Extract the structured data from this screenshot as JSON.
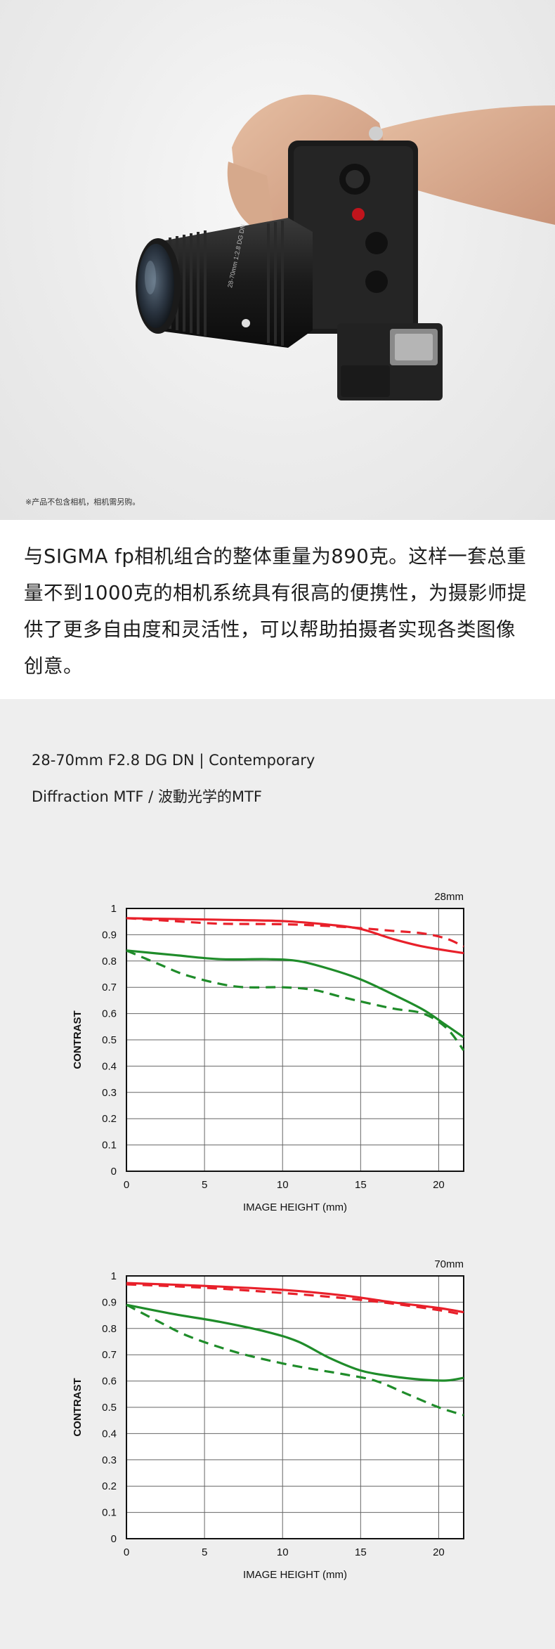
{
  "hero": {
    "disclaimer": "※产品不包含相机，相机需另购。",
    "lens_ring_text": "28-70mm 1:2.8 DG DN"
  },
  "intro": {
    "text": "与SIGMA fp相机组合的整体重量为890克。这样一套总重量不到1000克的相机系统具有很高的便携性，为摄影师提供了更多自由度和灵活性，可以帮助拍摄者实现各类图像创意。"
  },
  "mtf": {
    "lens_title": "28-70mm F2.8 DG DN | Contemporary",
    "subtitle": "Diffraction MTF / 波動光学的MTF"
  },
  "colors": {
    "red": "#e8202a",
    "green": "#1f8c2a",
    "grid": "#666666"
  },
  "chart_data": [
    {
      "type": "line",
      "title": "28mm",
      "xlabel": "IMAGE HEIGHT (mm)",
      "ylabel": "CONTRAST",
      "xlim": [
        0,
        21.6
      ],
      "ylim": [
        0,
        1
      ],
      "x_ticks": [
        0,
        5,
        10,
        15,
        20
      ],
      "y_ticks": [
        0,
        0.1,
        0.2,
        0.3,
        0.4,
        0.5,
        0.6,
        0.7,
        0.8,
        0.9,
        1
      ],
      "y_tick_labels": [
        "0",
        "0.1",
        "0.2",
        "0.3",
        "0.4",
        "0.5",
        "0.6",
        "0.7",
        "0.8",
        "0.9",
        "1"
      ],
      "grid": true,
      "series": [
        {
          "color": "red",
          "style": "solid",
          "points": [
            [
              0,
              0.963
            ],
            [
              3,
              0.96
            ],
            [
              6,
              0.957
            ],
            [
              10,
              0.952
            ],
            [
              13,
              0.938
            ],
            [
              15,
              0.922
            ],
            [
              17,
              0.885
            ],
            [
              19,
              0.855
            ],
            [
              21.6,
              0.83
            ]
          ]
        },
        {
          "color": "red",
          "style": "dashed",
          "points": [
            [
              0,
              0.963
            ],
            [
              3,
              0.952
            ],
            [
              6,
              0.942
            ],
            [
              10,
              0.94
            ],
            [
              13,
              0.933
            ],
            [
              15,
              0.925
            ],
            [
              17,
              0.915
            ],
            [
              19,
              0.905
            ],
            [
              20.5,
              0.885
            ],
            [
              21.6,
              0.855
            ]
          ]
        },
        {
          "color": "green",
          "style": "solid",
          "points": [
            [
              0,
              0.84
            ],
            [
              3,
              0.823
            ],
            [
              6,
              0.807
            ],
            [
              9,
              0.807
            ],
            [
              11,
              0.8
            ],
            [
              13,
              0.77
            ],
            [
              15,
              0.73
            ],
            [
              17,
              0.675
            ],
            [
              19,
              0.615
            ],
            [
              20.5,
              0.555
            ],
            [
              21.6,
              0.51
            ]
          ]
        },
        {
          "color": "green",
          "style": "dashed",
          "points": [
            [
              0,
              0.84
            ],
            [
              2,
              0.79
            ],
            [
              4,
              0.743
            ],
            [
              7,
              0.703
            ],
            [
              10,
              0.7
            ],
            [
              12,
              0.69
            ],
            [
              14,
              0.66
            ],
            [
              17,
              0.62
            ],
            [
              19,
              0.6
            ],
            [
              20.5,
              0.545
            ],
            [
              21.6,
              0.46
            ]
          ]
        }
      ]
    },
    {
      "type": "line",
      "title": "70mm",
      "xlabel": "IMAGE HEIGHT (mm)",
      "ylabel": "CONTRAST",
      "xlim": [
        0,
        21.6
      ],
      "ylim": [
        0,
        1
      ],
      "x_ticks": [
        0,
        5,
        10,
        15,
        20
      ],
      "y_ticks": [
        0,
        0.1,
        0.2,
        0.3,
        0.4,
        0.5,
        0.6,
        0.7,
        0.8,
        0.9,
        1
      ],
      "y_tick_labels": [
        "0",
        "0.1",
        "0.2",
        "0.3",
        "0.4",
        "0.5",
        "0.6",
        "0.7",
        "0.8",
        "0.9",
        "1"
      ],
      "grid": true,
      "series": [
        {
          "color": "red",
          "style": "solid",
          "points": [
            [
              0,
              0.973
            ],
            [
              5,
              0.962
            ],
            [
              10,
              0.947
            ],
            [
              14,
              0.925
            ],
            [
              17,
              0.9
            ],
            [
              20,
              0.878
            ],
            [
              21.6,
              0.862
            ]
          ]
        },
        {
          "color": "red",
          "style": "dashed",
          "points": [
            [
              0,
              0.968
            ],
            [
              5,
              0.955
            ],
            [
              10,
              0.935
            ],
            [
              14,
              0.915
            ],
            [
              17,
              0.895
            ],
            [
              20,
              0.87
            ],
            [
              21.6,
              0.852
            ]
          ]
        },
        {
          "color": "green",
          "style": "solid",
          "points": [
            [
              0,
              0.89
            ],
            [
              3,
              0.855
            ],
            [
              6,
              0.825
            ],
            [
              9,
              0.787
            ],
            [
              11,
              0.75
            ],
            [
              13,
              0.688
            ],
            [
              15,
              0.64
            ],
            [
              17,
              0.618
            ],
            [
              19,
              0.605
            ],
            [
              20.5,
              0.602
            ],
            [
              21.6,
              0.612
            ]
          ]
        },
        {
          "color": "green",
          "style": "dashed",
          "points": [
            [
              0,
              0.89
            ],
            [
              2,
              0.828
            ],
            [
              4,
              0.77
            ],
            [
              7,
              0.71
            ],
            [
              10,
              0.667
            ],
            [
              12,
              0.645
            ],
            [
              14,
              0.625
            ],
            [
              16,
              0.6
            ],
            [
              18,
              0.55
            ],
            [
              20,
              0.5
            ],
            [
              21.6,
              0.47
            ]
          ]
        }
      ]
    }
  ]
}
